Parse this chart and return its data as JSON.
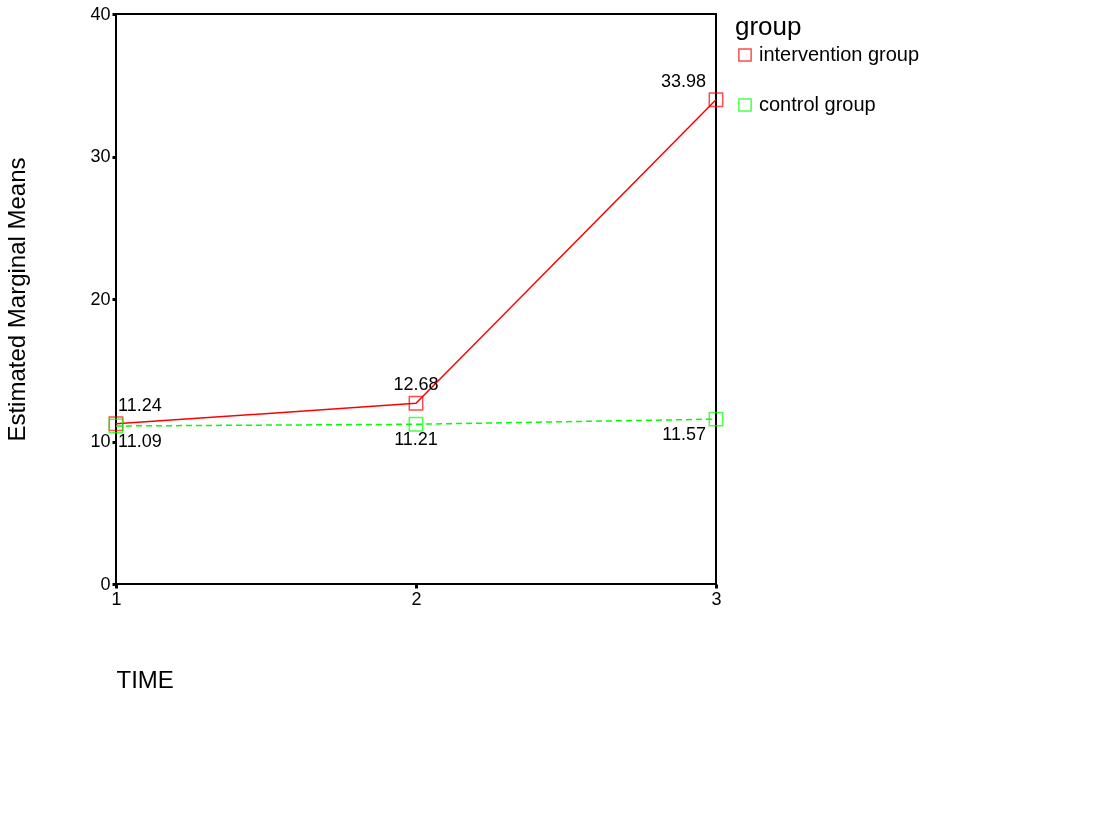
{
  "chart_data": {
    "type": "line",
    "xlabel": "TIME",
    "ylabel": "Estimated Marginal Means",
    "legend_title": "group",
    "x": [
      1,
      2,
      3
    ],
    "xlim": [
      1,
      3
    ],
    "xticks": [
      1,
      2,
      3
    ],
    "ylim": [
      0,
      40
    ],
    "yticks": [
      0,
      10,
      20,
      30,
      40
    ],
    "series": [
      {
        "name": "intervention group",
        "color": "#ff0000",
        "values": [
          11.24,
          12.68,
          33.98
        ],
        "line_style": "solid"
      },
      {
        "name": "control group",
        "color": "#00ff00",
        "values": [
          11.09,
          11.21,
          11.57
        ],
        "line_style": "dashed"
      }
    ],
    "marker": "square",
    "data_labels": true,
    "grid": false,
    "legend": "right"
  }
}
